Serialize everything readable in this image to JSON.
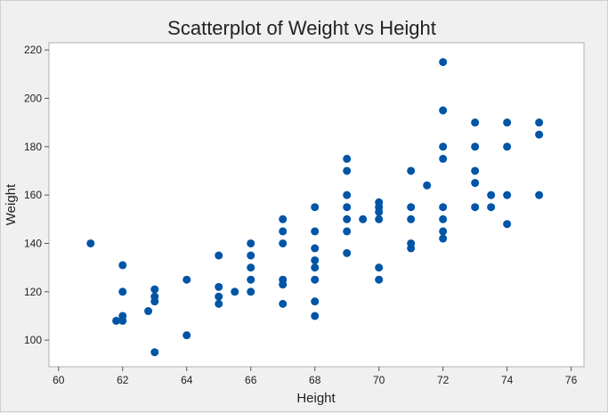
{
  "chart_data": {
    "type": "scatter",
    "title": "Scatterplot of Weight vs Height",
    "xlabel": "Height",
    "ylabel": "Weight",
    "xlim": [
      59.7,
      76.4
    ],
    "ylim": [
      89,
      223
    ],
    "xticks": [
      60,
      62,
      64,
      66,
      68,
      70,
      72,
      74,
      76
    ],
    "yticks": [
      100,
      120,
      140,
      160,
      180,
      200,
      220
    ],
    "grid": false,
    "marker_color": "#0055a6",
    "points": [
      {
        "x": 61,
        "y": 140
      },
      {
        "x": 61.8,
        "y": 108
      },
      {
        "x": 62,
        "y": 131
      },
      {
        "x": 62,
        "y": 120
      },
      {
        "x": 62,
        "y": 110
      },
      {
        "x": 62,
        "y": 108
      },
      {
        "x": 62.8,
        "y": 112
      },
      {
        "x": 63,
        "y": 121
      },
      {
        "x": 63,
        "y": 118
      },
      {
        "x": 63,
        "y": 116
      },
      {
        "x": 63,
        "y": 95
      },
      {
        "x": 64,
        "y": 125
      },
      {
        "x": 64,
        "y": 102
      },
      {
        "x": 65,
        "y": 135
      },
      {
        "x": 65,
        "y": 122
      },
      {
        "x": 65,
        "y": 118
      },
      {
        "x": 65,
        "y": 115
      },
      {
        "x": 65.5,
        "y": 120
      },
      {
        "x": 66,
        "y": 140
      },
      {
        "x": 66,
        "y": 135
      },
      {
        "x": 66,
        "y": 130
      },
      {
        "x": 66,
        "y": 125
      },
      {
        "x": 66,
        "y": 120
      },
      {
        "x": 67,
        "y": 150
      },
      {
        "x": 67,
        "y": 145
      },
      {
        "x": 67,
        "y": 140
      },
      {
        "x": 67,
        "y": 125
      },
      {
        "x": 67,
        "y": 123
      },
      {
        "x": 67,
        "y": 115
      },
      {
        "x": 68,
        "y": 155
      },
      {
        "x": 68,
        "y": 145
      },
      {
        "x": 68,
        "y": 138
      },
      {
        "x": 68,
        "y": 133
      },
      {
        "x": 68,
        "y": 130
      },
      {
        "x": 68,
        "y": 125
      },
      {
        "x": 68,
        "y": 116
      },
      {
        "x": 68,
        "y": 110
      },
      {
        "x": 69,
        "y": 175
      },
      {
        "x": 69,
        "y": 170
      },
      {
        "x": 69,
        "y": 160
      },
      {
        "x": 69,
        "y": 155
      },
      {
        "x": 69,
        "y": 150
      },
      {
        "x": 69,
        "y": 145
      },
      {
        "x": 69,
        "y": 136
      },
      {
        "x": 69.5,
        "y": 150
      },
      {
        "x": 70,
        "y": 157
      },
      {
        "x": 70,
        "y": 155
      },
      {
        "x": 70,
        "y": 153
      },
      {
        "x": 70,
        "y": 150
      },
      {
        "x": 70,
        "y": 130
      },
      {
        "x": 70,
        "y": 125
      },
      {
        "x": 71,
        "y": 170
      },
      {
        "x": 71,
        "y": 155
      },
      {
        "x": 71,
        "y": 150
      },
      {
        "x": 71,
        "y": 140
      },
      {
        "x": 71,
        "y": 138
      },
      {
        "x": 71.5,
        "y": 164
      },
      {
        "x": 72,
        "y": 215
      },
      {
        "x": 72,
        "y": 195
      },
      {
        "x": 72,
        "y": 180
      },
      {
        "x": 72,
        "y": 175
      },
      {
        "x": 72,
        "y": 155
      },
      {
        "x": 72,
        "y": 150
      },
      {
        "x": 72,
        "y": 145
      },
      {
        "x": 72,
        "y": 142
      },
      {
        "x": 73,
        "y": 190
      },
      {
        "x": 73,
        "y": 180
      },
      {
        "x": 73,
        "y": 170
      },
      {
        "x": 73,
        "y": 165
      },
      {
        "x": 73,
        "y": 155
      },
      {
        "x": 73.5,
        "y": 160
      },
      {
        "x": 73.5,
        "y": 155
      },
      {
        "x": 74,
        "y": 190
      },
      {
        "x": 74,
        "y": 180
      },
      {
        "x": 74,
        "y": 160
      },
      {
        "x": 74,
        "y": 148
      },
      {
        "x": 75,
        "y": 190
      },
      {
        "x": 75,
        "y": 185
      },
      {
        "x": 75,
        "y": 160
      }
    ]
  }
}
